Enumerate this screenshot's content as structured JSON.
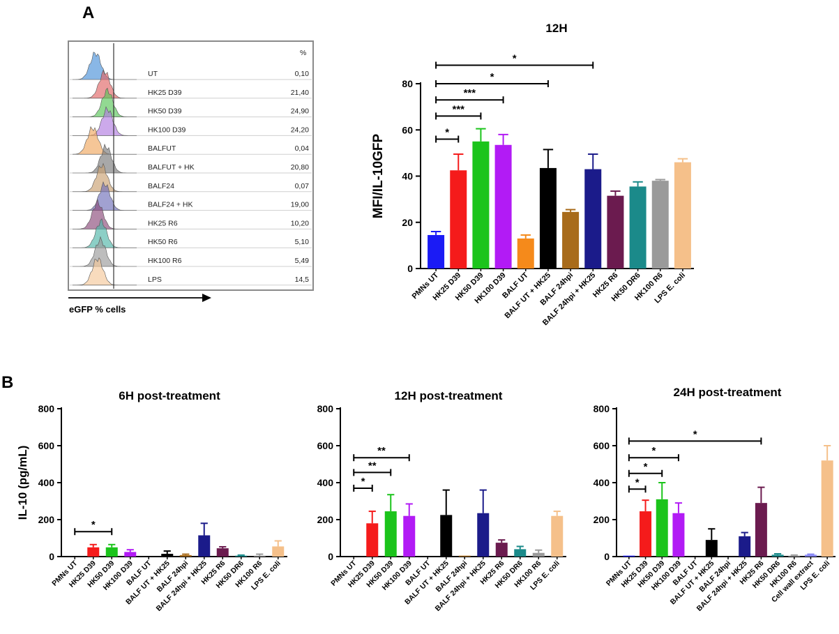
{
  "panel_a": {
    "letter": "A",
    "flow": {
      "percent_header": "%",
      "xlabel": "eGFP % cells",
      "rows": [
        {
          "label": "UT",
          "value": "0,10",
          "color": "#4a90d9"
        },
        {
          "label": "HK25 D39",
          "value": "21,40",
          "color": "#e06666"
        },
        {
          "label": "HK50 D39",
          "value": "24,90",
          "color": "#58c458"
        },
        {
          "label": "HK100 D39",
          "value": "24,20",
          "color": "#b07be0"
        },
        {
          "label": "BALFUT",
          "value": "0,04",
          "color": "#f0a860"
        },
        {
          "label": "BALFUT + HK",
          "value": "20,80",
          "color": "#7a7a7a"
        },
        {
          "label": "BALF24",
          "value": "0,07",
          "color": "#c9a070"
        },
        {
          "label": "BALF24  + HK",
          "value": "19,00",
          "color": "#6f6fb8"
        },
        {
          "label": "HK25 R6",
          "value": "10,20",
          "color": "#8a4a7a"
        },
        {
          "label": "HK50 R6",
          "value": "5,10",
          "color": "#4fb5a8"
        },
        {
          "label": "HK100 R6",
          "value": "5,49",
          "color": "#9a9a9a"
        },
        {
          "label": "LPS",
          "value": "14,5",
          "color": "#f5c89a"
        }
      ]
    }
  },
  "panel_b": {
    "letter": "B"
  },
  "chart_data": [
    {
      "type": "bar",
      "title": "12H",
      "ylabel": "MFI/IL-10GFP",
      "ylim": [
        0,
        80
      ],
      "yticks": [
        0,
        20,
        40,
        60,
        80
      ],
      "categories": [
        "PMNs UT",
        "HK25 D39",
        "HK50 D39",
        "HK100 D39",
        "BALF UT",
        "BALF UT + HK25",
        "BALF 24hpi",
        "BALF 24hpi + HK25",
        "HK25 R6",
        "HK50 DR6",
        "HK100 R6",
        "LPS E. coli"
      ],
      "values": [
        14.5,
        42.5,
        55,
        53.5,
        13,
        43.5,
        24.5,
        43,
        31.5,
        35.5,
        38,
        46
      ],
      "errors": [
        1.5,
        7,
        5.5,
        4.5,
        1.5,
        8,
        1,
        6.5,
        2,
        2,
        0.5,
        1.5
      ],
      "colors": [
        "#1b1bf5",
        "#f51b1b",
        "#1bc41b",
        "#b21bf5",
        "#f58a1b",
        "#000000",
        "#a86b1b",
        "#1b1b8a",
        "#6b1b4f",
        "#1b8a8a",
        "#9a9a9a",
        "#f5c08a"
      ],
      "significance": [
        {
          "from": 0,
          "to": 1,
          "label": "*",
          "y": 56
        },
        {
          "from": 0,
          "to": 2,
          "label": "***",
          "y": 66
        },
        {
          "from": 0,
          "to": 3,
          "label": "***",
          "y": 73
        },
        {
          "from": 0,
          "to": 5,
          "label": "*",
          "y": 80
        },
        {
          "from": 0,
          "to": 7,
          "label": "*",
          "y": 88
        }
      ]
    },
    {
      "type": "bar",
      "title": "6H post-treatment",
      "ylabel": "IL-10 (pg/mL)",
      "ylim": [
        0,
        800
      ],
      "yticks": [
        0,
        200,
        400,
        600,
        800
      ],
      "categories": [
        "PMNs UT",
        "HK25 D39",
        "HK50 D39",
        "HK100 D39",
        "BALF UT",
        "BALF UT + HK25",
        "BALF 24hpi",
        "BALF 24hpi + HK25",
        "HK25 R6",
        "HK50 DR6",
        "HK100 R6",
        "LPS E. coli"
      ],
      "values": [
        0,
        50,
        50,
        25,
        0,
        15,
        8,
        115,
        45,
        5,
        5,
        55
      ],
      "errors": [
        0,
        15,
        15,
        12,
        0,
        15,
        5,
        65,
        8,
        3,
        8,
        30
      ],
      "colors": [
        "#1b1bf5",
        "#f51b1b",
        "#1bc41b",
        "#b21bf5",
        "#f58a1b",
        "#000000",
        "#a86b1b",
        "#1b1b8a",
        "#6b1b4f",
        "#1b8a8a",
        "#9a9a9a",
        "#f5c08a"
      ],
      "significance": [
        {
          "from": 0,
          "to": 2,
          "label": "*",
          "y": 135
        }
      ]
    },
    {
      "type": "bar",
      "title": "12H post-treatment",
      "ylabel": "",
      "ylim": [
        0,
        800
      ],
      "yticks": [
        0,
        200,
        400,
        600,
        800
      ],
      "categories": [
        "PMNs UT",
        "HK25 D39",
        "HK50 D39",
        "HK100 D39",
        "BALF UT",
        "BALF UT + HK25",
        "BALF 24hpi",
        "BALF 24hpi + HK25",
        "HK25 R6",
        "HK50 DR6",
        "HK100 R6",
        "LPS E. coli"
      ],
      "values": [
        0,
        180,
        245,
        220,
        0,
        225,
        5,
        235,
        75,
        40,
        20,
        220
      ],
      "errors": [
        0,
        65,
        90,
        65,
        0,
        135,
        0,
        125,
        15,
        15,
        15,
        25
      ],
      "colors": [
        "#1b1bf5",
        "#f51b1b",
        "#1bc41b",
        "#b21bf5",
        "#f58a1b",
        "#000000",
        "#a86b1b",
        "#1b1b8a",
        "#6b1b4f",
        "#1b8a8a",
        "#9a9a9a",
        "#f5c08a"
      ],
      "significance": [
        {
          "from": 0,
          "to": 1,
          "label": "*",
          "y": 370
        },
        {
          "from": 0,
          "to": 2,
          "label": "**",
          "y": 455
        },
        {
          "from": 0,
          "to": 3,
          "label": "**",
          "y": 535
        }
      ]
    },
    {
      "type": "bar",
      "title": "24H post-treatment",
      "ylabel": "",
      "ylim": [
        0,
        800
      ],
      "yticks": [
        0,
        200,
        400,
        600,
        800
      ],
      "categories": [
        "PMNs UT",
        "HK25 D39",
        "HK50 D39",
        "HK100 D39",
        "BALF UT",
        "BALF UT + HK25",
        "BALF 24hpi",
        "BALF 24hpi + HK25",
        "HK25 R6",
        "HK50 DR6",
        "HK100 R6",
        "Cell wall extract",
        "LPS E. coli"
      ],
      "values": [
        5,
        245,
        310,
        235,
        0,
        90,
        0,
        110,
        290,
        10,
        5,
        10,
        520
      ],
      "errors": [
        0,
        60,
        90,
        55,
        0,
        60,
        0,
        20,
        85,
        5,
        3,
        3,
        80
      ],
      "colors": [
        "#1b1bf5",
        "#f51b1b",
        "#1bc41b",
        "#b21bf5",
        "#f58a1b",
        "#000000",
        "#a86b1b",
        "#1b1b8a",
        "#6b1b4f",
        "#1b8a8a",
        "#9a9a9a",
        "#8a8af5",
        "#f5c08a"
      ],
      "significance": [
        {
          "from": 0,
          "to": 1,
          "label": "*",
          "y": 365
        },
        {
          "from": 0,
          "to": 2,
          "label": "*",
          "y": 450
        },
        {
          "from": 0,
          "to": 3,
          "label": "*",
          "y": 535
        },
        {
          "from": 0,
          "to": 8,
          "label": "*",
          "y": 625
        }
      ]
    }
  ]
}
